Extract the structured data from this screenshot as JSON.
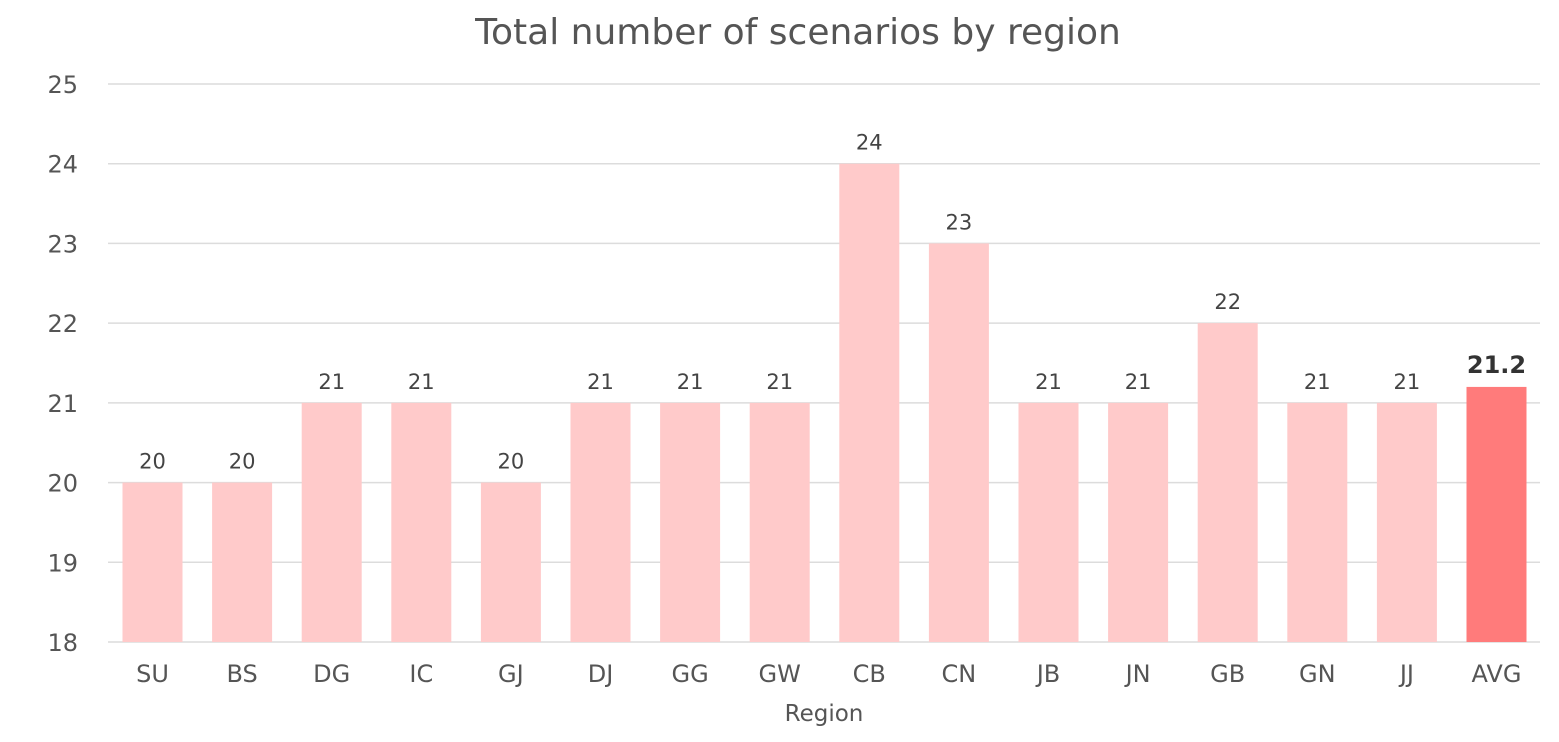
{
  "chart_data": {
    "type": "bar",
    "title": "Total number of scenarios by region",
    "xlabel": "Region",
    "ylabel": "",
    "ylim": [
      18,
      25
    ],
    "yticks": [
      18,
      19,
      20,
      21,
      22,
      23,
      24,
      25
    ],
    "grid": true,
    "categories": [
      "SU",
      "BS",
      "DG",
      "IC",
      "GJ",
      "DJ",
      "GG",
      "GW",
      "CB",
      "CN",
      "JB",
      "JN",
      "GB",
      "GN",
      "JJ",
      "AVG"
    ],
    "values": [
      20,
      20,
      21,
      21,
      20,
      21,
      21,
      21,
      24,
      23,
      21,
      21,
      22,
      21,
      21,
      21.2
    ],
    "data_labels": [
      "20",
      "20",
      "21",
      "21",
      "20",
      "21",
      "21",
      "21",
      "24",
      "23",
      "21",
      "21",
      "22",
      "21",
      "21",
      "21.2"
    ],
    "highlight_category": "AVG",
    "colors": {
      "bar": "#ffcaca",
      "highlight": "#ff7b7b",
      "grid": "#dcdcdc",
      "text": "#555555"
    }
  }
}
